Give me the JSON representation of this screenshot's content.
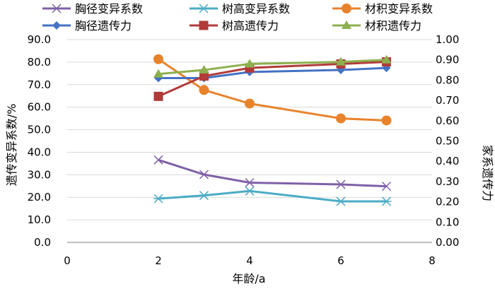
{
  "chart_data": {
    "type": "line",
    "xlabel": "年龄/a",
    "ylabel_left": "遗传变异系数/%",
    "ylabel_right": "家系遗传力",
    "xlim": [
      0,
      8
    ],
    "x_ticks": [
      "0",
      "2",
      "4",
      "6",
      "8"
    ],
    "ylim_left": [
      0,
      90
    ],
    "y_ticks_left": [
      "0.0",
      "10.0",
      "20.0",
      "30.0",
      "40.0",
      "50.0",
      "60.0",
      "70.0",
      "80.0",
      "90.0"
    ],
    "ylim_right": [
      0,
      1
    ],
    "y_ticks_right": [
      "0.00",
      "0.10",
      "0.20",
      "0.30",
      "0.40",
      "0.50",
      "0.60",
      "0.70",
      "0.80",
      "0.90",
      "1.00"
    ],
    "grid": "horizontal",
    "legend_position": "top",
    "series": [
      {
        "name": "胸径变异系数",
        "axis": "left",
        "color": "#7F60A8",
        "marker": "x",
        "x": [
          2,
          3,
          4,
          6,
          7
        ],
        "values": [
          36.6,
          30.1,
          26.5,
          25.7,
          24.9
        ]
      },
      {
        "name": "树高变异系数",
        "axis": "left",
        "color": "#4BACC6",
        "marker": "star",
        "x": [
          2,
          3,
          4,
          6,
          7
        ],
        "values": [
          19.4,
          20.8,
          22.8,
          18.2,
          18.2
        ]
      },
      {
        "name": "材积变异系数",
        "axis": "left",
        "color": "#E8832C",
        "marker": "circle",
        "x": [
          2,
          3,
          4,
          6,
          7
        ],
        "values": [
          81.3,
          67.6,
          61.6,
          55.0,
          54.1
        ]
      },
      {
        "name": "胸径遗传力",
        "axis": "right",
        "color": "#4472C4",
        "marker": "diamond",
        "x": [
          2,
          3,
          4,
          6,
          7
        ],
        "values": [
          0.81,
          0.81,
          0.84,
          0.85,
          0.86
        ]
      },
      {
        "name": "树高遗传力",
        "axis": "right",
        "color": "#B23A3A",
        "marker": "square",
        "x": [
          2,
          3,
          4,
          6,
          7
        ],
        "values": [
          0.72,
          0.82,
          0.86,
          0.88,
          0.89
        ]
      },
      {
        "name": "材积遗传力",
        "axis": "right",
        "color": "#8CB04E",
        "marker": "triangle",
        "x": [
          2,
          3,
          4,
          6,
          7
        ],
        "values": [
          0.83,
          0.85,
          0.88,
          0.89,
          0.9
        ]
      }
    ]
  }
}
